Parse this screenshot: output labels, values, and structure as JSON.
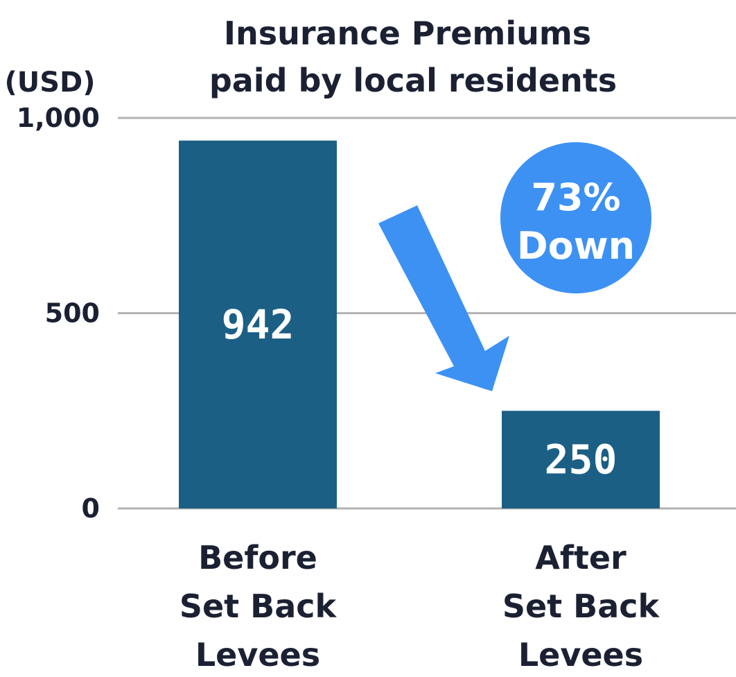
{
  "chart_data": {
    "type": "bar",
    "title": [
      "Insurance Premiums",
      "paid by local residents"
    ],
    "ylabel": "(USD)",
    "ylim": [
      0,
      1000
    ],
    "yticks": [
      {
        "value": 0,
        "label": "0"
      },
      {
        "value": 500,
        "label": "500"
      },
      {
        "value": 1000,
        "label": "1,000"
      }
    ],
    "grid": true,
    "categories": [
      [
        "Before",
        "Set Back",
        "Levees"
      ],
      [
        "After",
        "Set Back",
        "Levees"
      ]
    ],
    "values": [
      942,
      250
    ],
    "data_labels": [
      "942",
      "250"
    ],
    "annotation": {
      "lines": [
        "73%",
        "Down"
      ],
      "shape": "circle",
      "arrow": "down-right"
    },
    "colors": {
      "bar": "#1c5f85",
      "accent": "#3d91f3",
      "grid": "#b3b3b3",
      "text": "#1b2133"
    }
  }
}
